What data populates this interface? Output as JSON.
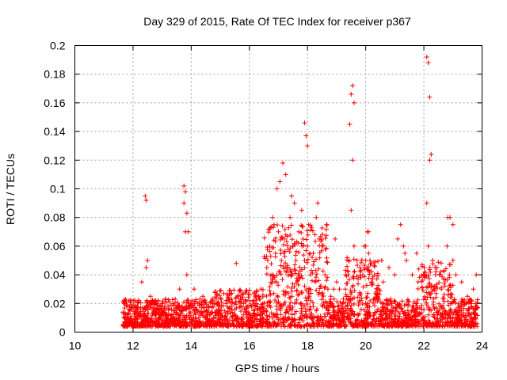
{
  "chart_data": {
    "type": "scatter",
    "title": "Day 329 of 2015, Rate Of TEC Index for receiver p367",
    "xlabel": "GPS time / hours",
    "ylabel": "ROTI / TECUs",
    "xlim": [
      10,
      24
    ],
    "ylim": [
      0,
      0.2
    ],
    "xticks": [
      10,
      12,
      14,
      16,
      18,
      20,
      22,
      24
    ],
    "yticks": [
      0,
      0.02,
      0.04,
      0.06,
      0.08,
      0.1,
      0.12,
      0.14,
      0.16,
      0.18,
      0.2
    ],
    "xtick_labels": [
      "10",
      "12",
      "14",
      "16",
      "18",
      "20",
      "22",
      "24"
    ],
    "ytick_labels": [
      "0",
      "0.02",
      "0.04",
      "0.06",
      "0.08",
      "0.1",
      "0.12",
      "0.14",
      "0.16",
      "0.18",
      "0.2"
    ],
    "grid": true,
    "marker": "+",
    "marker_color": "#ff0000",
    "x_range_of_data": [
      11.65,
      23.85
    ],
    "series": [
      {
        "name": "ROTI",
        "x": [
          11.7,
          11.9,
          12.1,
          12.3,
          12.45,
          12.6,
          12.8,
          13.0,
          13.2,
          13.4,
          13.6,
          13.75,
          13.8,
          13.85,
          14.0,
          14.2,
          14.4,
          14.6,
          14.8,
          15.0,
          15.2,
          15.4,
          15.6,
          15.8,
          16.0,
          16.2,
          16.4,
          16.6,
          16.7,
          16.8,
          16.9,
          17.0,
          17.1,
          17.2,
          17.3,
          17.4,
          17.5,
          17.6,
          17.7,
          17.8,
          17.9,
          18.0,
          18.1,
          18.2,
          18.3,
          18.4,
          18.5,
          18.6,
          18.7,
          18.8,
          18.9,
          19.0,
          19.1,
          19.2,
          19.3,
          19.4,
          19.5,
          19.55,
          19.6,
          19.7,
          19.8,
          19.9,
          20.0,
          20.1,
          20.2,
          20.3,
          20.4,
          20.6,
          20.8,
          21.0,
          21.2,
          21.3,
          21.4,
          21.6,
          21.8,
          22.0,
          22.1,
          22.15,
          22.2,
          22.3,
          22.4,
          22.6,
          22.8,
          22.9,
          23.0,
          23.1,
          23.3,
          23.5,
          23.7,
          23.8,
          12.42,
          12.45,
          13.75,
          13.8,
          13.85,
          13.9,
          17.05,
          17.15,
          17.25,
          17.9,
          17.95,
          18.0,
          18.35,
          19.45,
          19.5,
          19.55,
          19.6,
          20.1,
          22.1,
          22.15,
          22.2,
          22.25,
          22.82,
          23.0,
          16.85,
          17.45,
          18.95,
          20.05,
          21.1,
          21.35,
          12.5,
          15.55,
          14.1,
          16.95,
          17.55,
          18.25,
          19.95,
          20.55,
          21.75,
          22.45
        ],
        "y": [
          0.02,
          0.015,
          0.018,
          0.035,
          0.045,
          0.025,
          0.02,
          0.012,
          0.018,
          0.015,
          0.03,
          0.09,
          0.07,
          0.04,
          0.02,
          0.015,
          0.025,
          0.018,
          0.02,
          0.015,
          0.022,
          0.018,
          0.025,
          0.02,
          0.022,
          0.025,
          0.03,
          0.045,
          0.06,
          0.08,
          0.055,
          0.07,
          0.05,
          0.065,
          0.045,
          0.08,
          0.06,
          0.05,
          0.07,
          0.085,
          0.05,
          0.06,
          0.04,
          0.055,
          0.08,
          0.065,
          0.06,
          0.04,
          0.03,
          0.025,
          0.03,
          0.035,
          0.03,
          0.02,
          0.03,
          0.04,
          0.085,
          0.12,
          0.06,
          0.05,
          0.045,
          0.04,
          0.06,
          0.055,
          0.035,
          0.04,
          0.03,
          0.035,
          0.045,
          0.04,
          0.075,
          0.06,
          0.05,
          0.04,
          0.035,
          0.04,
          0.09,
          0.06,
          0.12,
          0.05,
          0.04,
          0.03,
          0.06,
          0.08,
          0.05,
          0.04,
          0.035,
          0.025,
          0.03,
          0.04,
          0.095,
          0.092,
          0.102,
          0.098,
          0.083,
          0.07,
          0.105,
          0.118,
          0.11,
          0.146,
          0.137,
          0.13,
          0.09,
          0.145,
          0.166,
          0.172,
          0.16,
          0.07,
          0.192,
          0.188,
          0.164,
          0.124,
          0.08,
          0.075,
          0.075,
          0.095,
          0.065,
          0.07,
          0.065,
          0.055,
          0.05,
          0.048,
          0.03,
          0.1,
          0.09,
          0.068,
          0.06,
          0.05,
          0.055,
          0.045
        ]
      }
    ]
  }
}
